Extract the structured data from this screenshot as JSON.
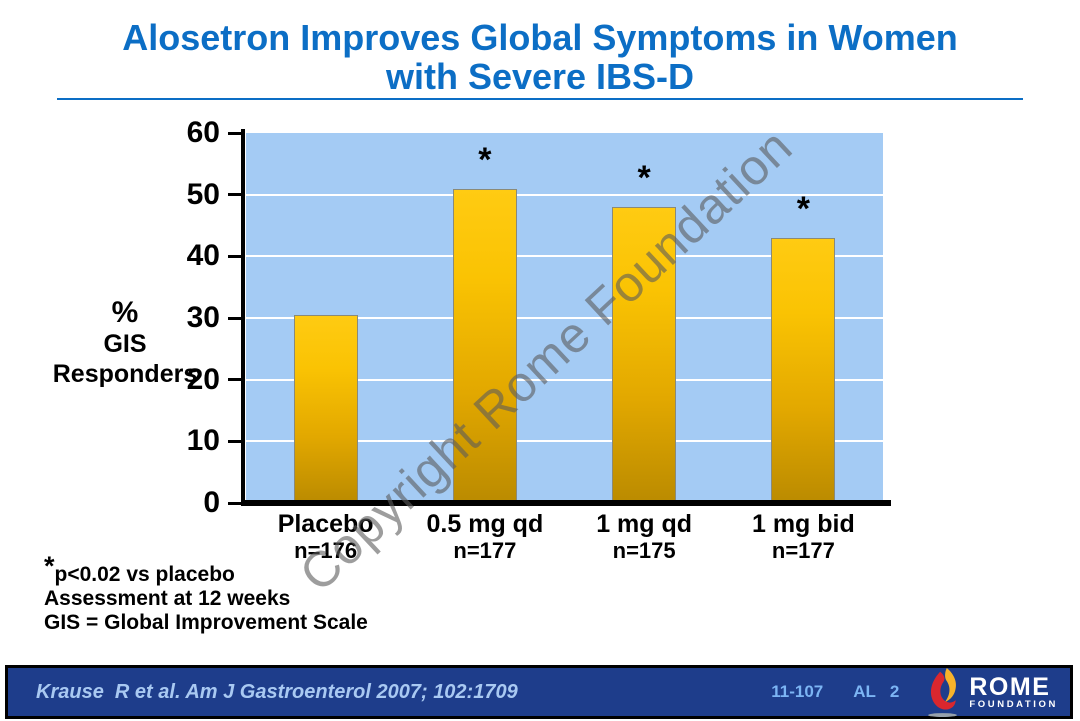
{
  "title": {
    "line1": "Alosetron Improves Global Symptoms in Women",
    "line2": "with Severe IBS-D"
  },
  "watermark": "Copyright Rome Foundation",
  "chart_data": {
    "type": "bar",
    "title": "Alosetron Improves Global Symptoms in Women with Severe IBS-D",
    "ylabel_lines": [
      "%",
      "GIS",
      "Responders"
    ],
    "categories": [
      "Placebo",
      "0.5 mg qd",
      "1 mg qd",
      "1 mg bid"
    ],
    "n_labels": [
      "n=176",
      "n=177",
      "n=175",
      "n=177"
    ],
    "values": [
      30.5,
      51,
      48,
      43
    ],
    "significant": [
      false,
      true,
      true,
      true
    ],
    "sig_marker": "*",
    "ylim": [
      0,
      60
    ],
    "yticks": [
      0,
      10,
      20,
      30,
      40,
      50,
      60
    ],
    "grid": true,
    "legend": "none",
    "plot_bg_color": "#A4CBF4",
    "bar_color_top": "#FFCB12",
    "bar_color_bottom": "#BB8B00"
  },
  "footnotes": {
    "sig": "*",
    "line1": "p<0.02 vs placebo",
    "line2": "Assessment at 12 weeks",
    "line3": "GIS = Global Improvement Scale"
  },
  "footer": {
    "citation": "Krause  R et al. Am J Gastroenterol 2007; 102:1709",
    "code1": "11-107",
    "code2": "AL",
    "code3": "2",
    "logo_name": "ROME",
    "logo_sub": "FOUNDATION"
  },
  "colors": {
    "title_blue": "#0C6EC5",
    "footer_navy": "#1E3D8B",
    "citation_blue": "#A9C9F2",
    "code_blue": "#7CB5F4",
    "watermark_gray": "#5C5C5C",
    "flame_red": "#D9272E",
    "flame_yellow": "#F7B32B"
  }
}
